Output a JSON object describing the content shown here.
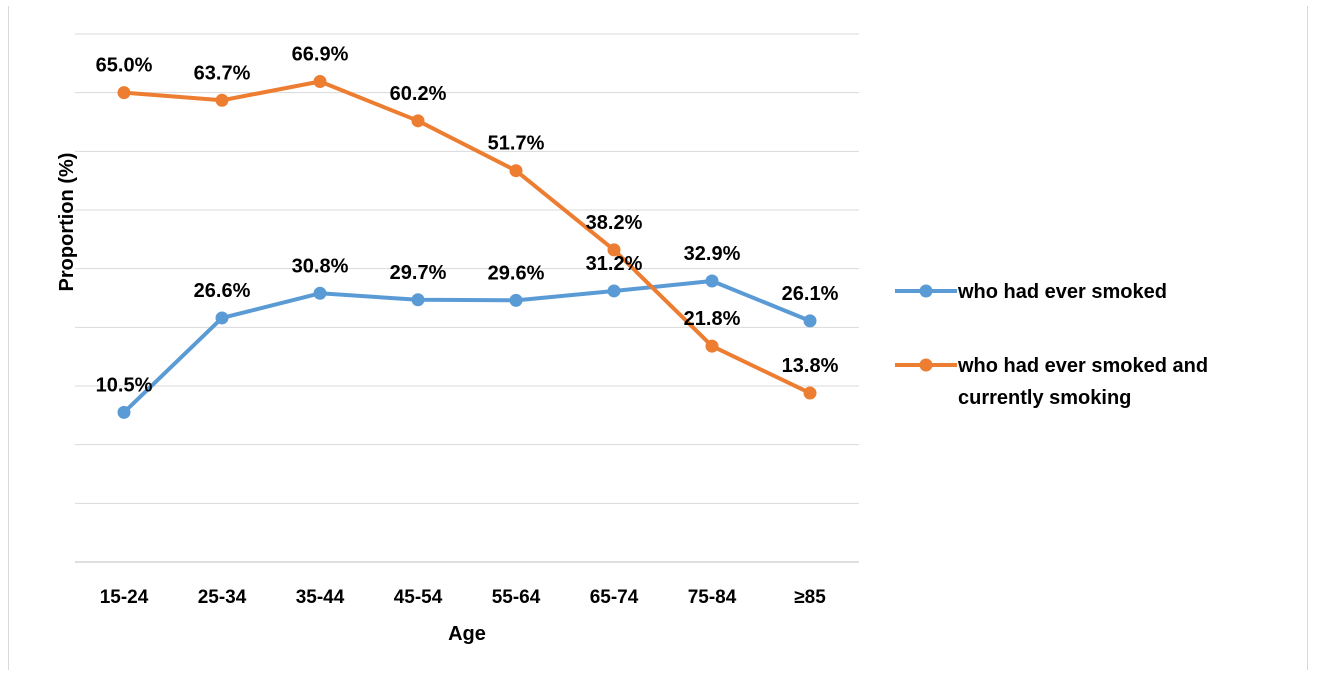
{
  "chart_data": {
    "type": "line",
    "title": "",
    "xlabel": "Age",
    "ylabel": "Proportion (%)",
    "categories": [
      "15-24",
      "25-34",
      "35-44",
      "45-54",
      "55-64",
      "65-74",
      "75-84",
      "≥85"
    ],
    "ylim": [
      -15,
      75
    ],
    "grid": true,
    "legend_position": "right",
    "series": [
      {
        "name": "who had ever smoked",
        "color": "#5b9bd5",
        "values": [
          10.5,
          26.6,
          30.8,
          29.7,
          29.6,
          31.2,
          32.9,
          26.1
        ],
        "labels": [
          "10.5%",
          "26.6%",
          "30.8%",
          "29.7%",
          "29.6%",
          "31.2%",
          "32.9%",
          "26.1%"
        ]
      },
      {
        "name": "who had ever smoked and currently smoking",
        "color": "#ed7d31",
        "values": [
          65.0,
          63.7,
          66.9,
          60.2,
          51.7,
          38.2,
          21.8,
          13.8
        ],
        "labels": [
          "65.0%",
          "63.7%",
          "66.9%",
          "60.2%",
          "51.7%",
          "38.2%",
          "21.8%",
          "13.8%"
        ]
      }
    ]
  }
}
